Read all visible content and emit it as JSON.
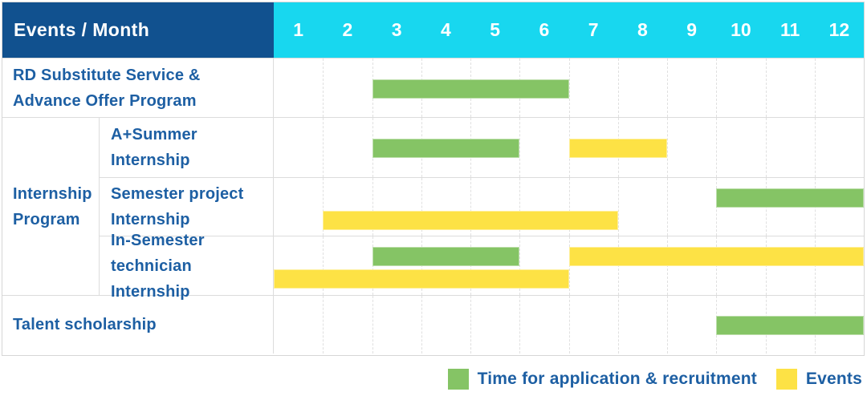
{
  "header": {
    "corner_label": "Events / Month",
    "months": [
      "1",
      "2",
      "3",
      "4",
      "5",
      "6",
      "7",
      "8",
      "9",
      "10",
      "11",
      "12"
    ]
  },
  "group_label": "Internship Program",
  "colors": {
    "header_bg": "#11518f",
    "months_bg": "#18d7ef",
    "label_text": "#1d5fa3",
    "recruitment": "#85c465",
    "event": "#fde245",
    "grid_line": "#e0e0e0"
  },
  "chart_data": {
    "type": "gantt",
    "title": "Events / Month",
    "x_unit": "month",
    "x_range": [
      1,
      12
    ],
    "grid": "dashed-vertical-per-month",
    "rows": [
      {
        "group": "",
        "label": "RD Substitute Service & Advance Offer Program",
        "lines": 1,
        "bars": [
          {
            "kind": "recruitment",
            "start_month": 3,
            "end_month": 6,
            "line": 0
          }
        ]
      },
      {
        "group": "Internship Program",
        "label": "A+Summer Internship",
        "lines": 1,
        "bars": [
          {
            "kind": "recruitment",
            "start_month": 3,
            "end_month": 5,
            "line": 0
          },
          {
            "kind": "event",
            "start_month": 7,
            "end_month": 8,
            "line": 0
          }
        ]
      },
      {
        "group": "Internship Program",
        "label": "Semester project Internship",
        "lines": 2,
        "bars": [
          {
            "kind": "recruitment",
            "start_month": 10,
            "end_month": 12,
            "line": 0
          },
          {
            "kind": "event",
            "start_month": 2,
            "end_month": 7,
            "line": 1
          }
        ]
      },
      {
        "group": "Internship Program",
        "label": "In-Semester technician Internship",
        "lines": 2,
        "bars": [
          {
            "kind": "recruitment",
            "start_month": 3,
            "end_month": 5,
            "line": 0
          },
          {
            "kind": "event",
            "start_month": 7,
            "end_month": 12,
            "line": 0
          },
          {
            "kind": "event",
            "start_month": 1,
            "end_month": 6,
            "line": 1
          }
        ]
      },
      {
        "group": "",
        "label": "Talent scholarship",
        "lines": 1,
        "bars": [
          {
            "kind": "recruitment",
            "start_month": 10,
            "end_month": 12,
            "line": 0
          }
        ]
      }
    ]
  },
  "legend": [
    {
      "kind": "recruitment",
      "label": "Time for application & recruitment",
      "color": "#85c465"
    },
    {
      "kind": "event",
      "label": "Events",
      "color": "#fde245"
    }
  ]
}
